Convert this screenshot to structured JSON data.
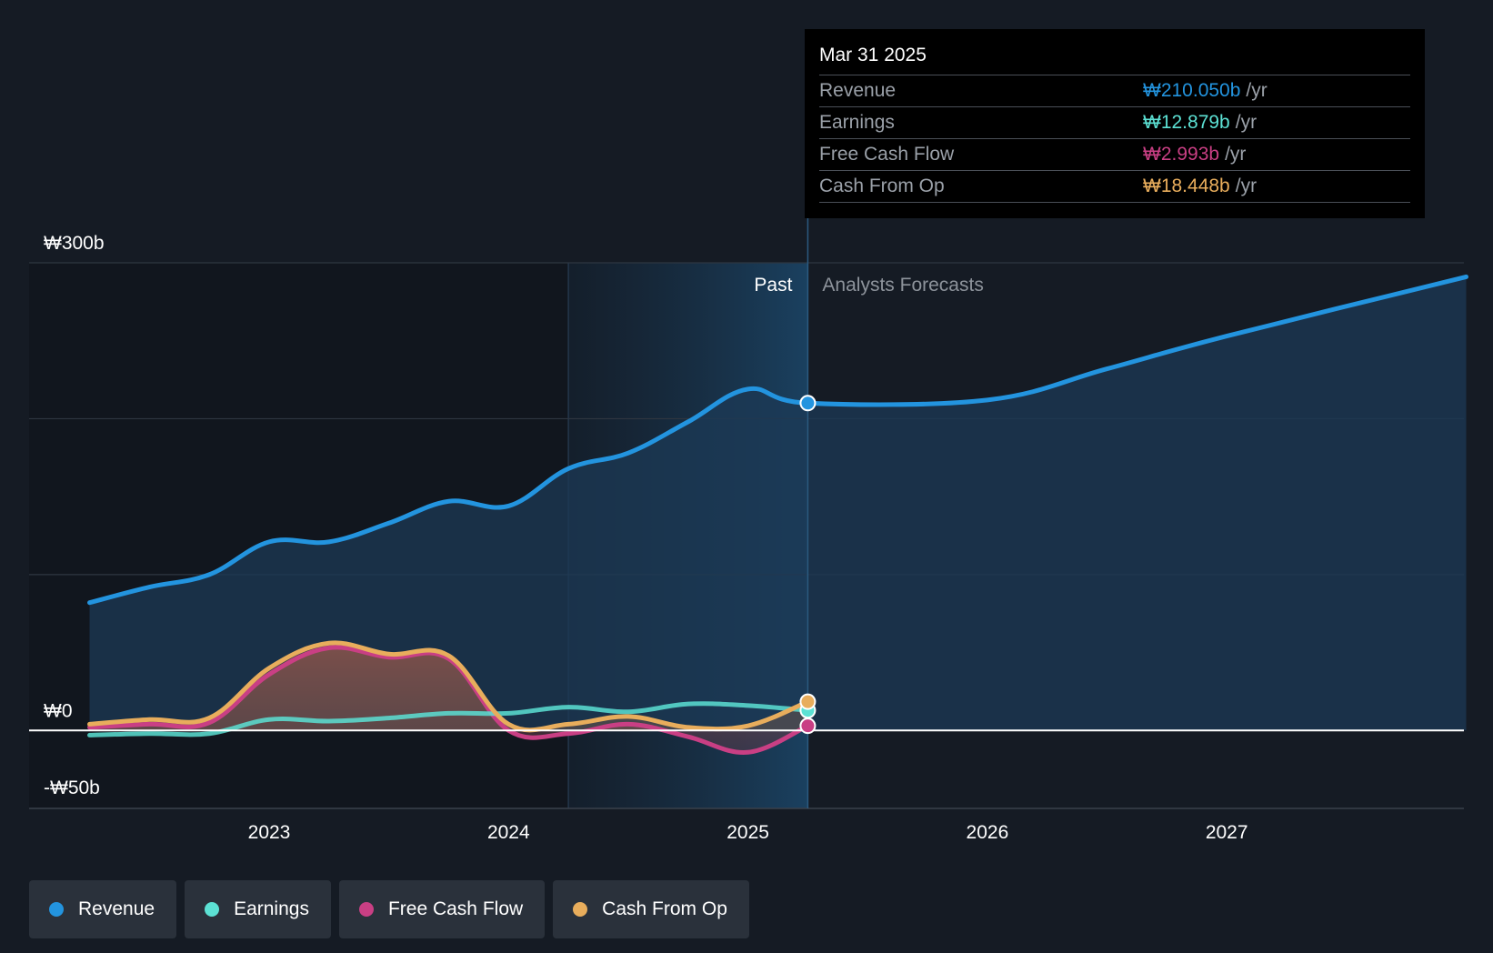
{
  "chart_data": {
    "type": "line",
    "currency": "₩",
    "y_axis": {
      "min": -50,
      "max": 300,
      "tick_labels": [
        "₩300b",
        "₩0",
        "-₩50b"
      ],
      "tick_values": [
        300,
        0,
        -50
      ],
      "gridlines": [
        300,
        200,
        100,
        0
      ]
    },
    "x_axis": {
      "tick_labels": [
        "2023",
        "2024",
        "2025",
        "2026",
        "2027"
      ],
      "tick_values": [
        2023,
        2024,
        2025,
        2026,
        2027
      ],
      "range": [
        2022.25,
        2028.0
      ]
    },
    "past_label": "Past",
    "forecast_label": "Analysts Forecasts",
    "divider_x": 2025.25,
    "highlight_start_x": 2024.25,
    "series": [
      {
        "name": "Revenue",
        "color": "#2394df",
        "fill": true,
        "points": [
          [
            2022.25,
            82
          ],
          [
            2022.5,
            92
          ],
          [
            2022.75,
            100
          ],
          [
            2023.0,
            121
          ],
          [
            2023.25,
            121
          ],
          [
            2023.5,
            133
          ],
          [
            2023.75,
            147
          ],
          [
            2024.0,
            144
          ],
          [
            2024.25,
            168
          ],
          [
            2024.5,
            178
          ],
          [
            2024.75,
            198
          ],
          [
            2025.0,
            219
          ],
          [
            2025.25,
            210
          ],
          [
            2026.0,
            212
          ],
          [
            2026.5,
            232
          ],
          [
            2027.0,
            253
          ],
          [
            2028.0,
            291
          ]
        ]
      },
      {
        "name": "Earnings",
        "color": "#5ce1d4",
        "fill": false,
        "points": [
          [
            2022.25,
            -3
          ],
          [
            2022.5,
            -2
          ],
          [
            2022.75,
            -2
          ],
          [
            2023.0,
            7
          ],
          [
            2023.25,
            6
          ],
          [
            2023.5,
            8
          ],
          [
            2023.75,
            11
          ],
          [
            2024.0,
            11
          ],
          [
            2024.25,
            15
          ],
          [
            2024.5,
            12
          ],
          [
            2024.75,
            17
          ],
          [
            2025.0,
            16
          ],
          [
            2025.25,
            12.879
          ]
        ]
      },
      {
        "name": "Free Cash Flow",
        "color": "#c93f84",
        "fill": true,
        "points": [
          [
            2022.25,
            2
          ],
          [
            2022.5,
            4
          ],
          [
            2022.75,
            5
          ],
          [
            2023.0,
            36
          ],
          [
            2023.25,
            53
          ],
          [
            2023.5,
            47
          ],
          [
            2023.75,
            46
          ],
          [
            2024.0,
            0
          ],
          [
            2024.25,
            -2
          ],
          [
            2024.5,
            4
          ],
          [
            2024.75,
            -4
          ],
          [
            2025.0,
            -14
          ],
          [
            2025.25,
            2.993
          ]
        ]
      },
      {
        "name": "Cash From Op",
        "color": "#e8ad5c",
        "fill": true,
        "points": [
          [
            2022.25,
            4
          ],
          [
            2022.5,
            7
          ],
          [
            2022.75,
            8
          ],
          [
            2023.0,
            40
          ],
          [
            2023.25,
            56
          ],
          [
            2023.5,
            49
          ],
          [
            2023.75,
            48
          ],
          [
            2024.0,
            4
          ],
          [
            2024.25,
            4
          ],
          [
            2024.5,
            9
          ],
          [
            2024.75,
            2
          ],
          [
            2025.0,
            3
          ],
          [
            2025.25,
            18.448
          ]
        ]
      }
    ]
  },
  "tooltip": {
    "date": "Mar 31 2025",
    "rows": [
      {
        "label": "Revenue",
        "value": "₩210.050b",
        "unit": "/yr",
        "color": "#2394df"
      },
      {
        "label": "Earnings",
        "value": "₩12.879b",
        "unit": "/yr",
        "color": "#5ce1d4"
      },
      {
        "label": "Free Cash Flow",
        "value": "₩2.993b",
        "unit": "/yr",
        "color": "#c93f84"
      },
      {
        "label": "Cash From Op",
        "value": "₩18.448b",
        "unit": "/yr",
        "color": "#e8ad5c"
      }
    ]
  },
  "legend": [
    {
      "label": "Revenue",
      "color": "#2394df"
    },
    {
      "label": "Earnings",
      "color": "#5ce1d4"
    },
    {
      "label": "Free Cash Flow",
      "color": "#c93f84"
    },
    {
      "label": "Cash From Op",
      "color": "#e8ad5c"
    }
  ]
}
